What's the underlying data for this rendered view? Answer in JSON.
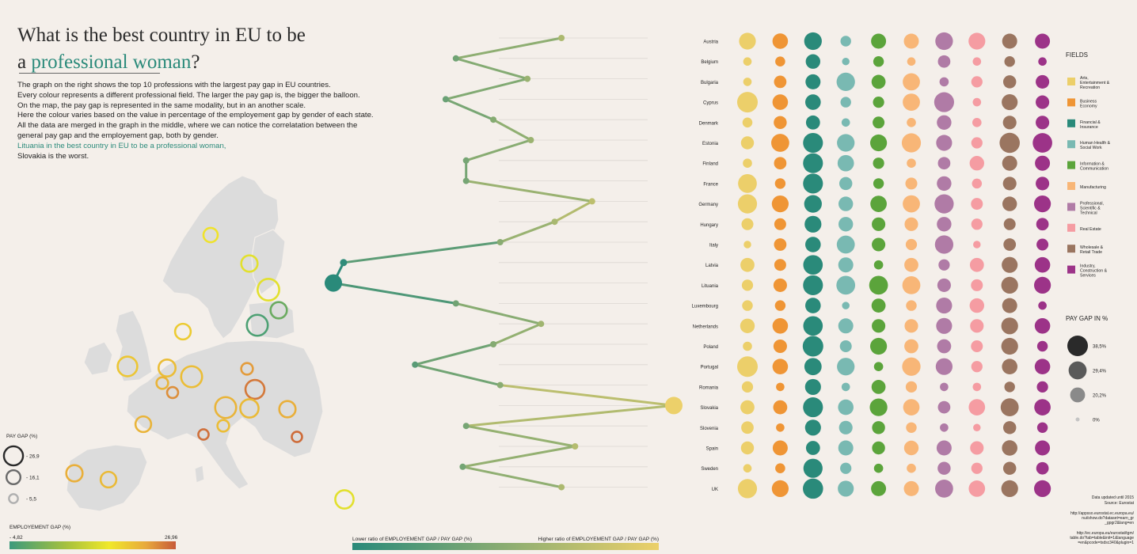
{
  "title": {
    "line1": "What is the best country in EU to be",
    "line2_prefix": "a ",
    "line2_highlight": "professional woman",
    "line2_suffix": "?"
  },
  "description": [
    "The graph on the right shows the top 10 professions with the largest pay gap in EU countries.",
    "Every colour represents a different professional field. The larger the pay gap is, the bigger the balloon.",
    "On the map, the pay gap is represented in the same modality, but in an another scale.",
    "Here the colour varies based on the value in percentage of the employement gap by gender of each state.",
    "All the data are merged in the graph in the middle, where we can notice the correlatation between the general pay gap and the employement gap, both by gender."
  ],
  "conclusion": {
    "highlight": "Lituania in the best country in EU to be a professional woman,",
    "rest": "Slovakia is the worst."
  },
  "map_legend": {
    "pay_gap_title": "PAY GAP (%)",
    "sizes": [
      {
        "label": "- 26,9",
        "value": 26.9
      },
      {
        "label": "- 16,1",
        "value": 16.1
      },
      {
        "label": "- 5,5",
        "value": 5.5
      }
    ],
    "employment_title": "EMPLOYEMENT GAP (%)",
    "emp_min": "- 4,82",
    "emp_max": "26,96"
  },
  "middle_legend": {
    "left": "Lower ratio of EMPLOYEMENT GAP / PAY GAP (%)",
    "right": "Higher ratio of EMPLOYEMENT GAP / PAY GAP (%)"
  },
  "fields_title": "FIELDS",
  "paygap_title": "PAY GAP IN %",
  "paygap_sizes": [
    {
      "label": "38,5%",
      "value": 38.5,
      "color": "#2a2a2a"
    },
    {
      "label": "29,4%",
      "value": 29.4,
      "color": "#5a5a5a"
    },
    {
      "label": "20,2%",
      "value": 20.2,
      "color": "#8a8a8a"
    },
    {
      "label": "0%",
      "value": 0,
      "color": "#c4c4c4"
    }
  ],
  "footer": {
    "updated": "Data updated until 2015",
    "source": "Source: Eurostat",
    "url1a": "http://appsso.eurostat.ec.europa.eu/",
    "url1b": "nui/show.do?dataset=earn_gr",
    "url1c": "_gpgr2&lang=en",
    "url2a": "http://ec.europa.eu/eurostat/tgm/",
    "url2b": "table.do?tab=table&init=1&language",
    "url2c": "=en&pcode=tsdsc340&plugin=1"
  },
  "chart_data": [
    {
      "type": "scatter",
      "title": "Pay gap by professional field",
      "fields": [
        {
          "name": "Arts, Entertainment & Recreation",
          "lines": [
            "Arts,",
            "Entertainment &",
            "Recreation"
          ],
          "color": "#eccf6a"
        },
        {
          "name": "Business Economy",
          "lines": [
            "Business",
            "Economy"
          ],
          "color": "#ef9535"
        },
        {
          "name": "Financial & Insurance",
          "lines": [
            "Financial &",
            "Insurance"
          ],
          "color": "#2a8a7a"
        },
        {
          "name": "Human Health & Social Work",
          "lines": [
            "Human Health &",
            "Social Work"
          ],
          "color": "#79b9b2"
        },
        {
          "name": "Information & Communication",
          "lines": [
            "Information &",
            "Communication"
          ],
          "color": "#5ba43b"
        },
        {
          "name": "Manufacturing",
          "lines": [
            "Manufacturing"
          ],
          "color": "#f8b677"
        },
        {
          "name": "Professional, Scientific & Technical",
          "lines": [
            "Professional,",
            "Scientific &",
            "Technical"
          ],
          "color": "#b07ba6"
        },
        {
          "name": "Real Estate",
          "lines": [
            "Real Estate"
          ],
          "color": "#f59ca2"
        },
        {
          "name": "Wholesale & Retail Trade",
          "lines": [
            "Wholesale &",
            "Retail Trade"
          ],
          "color": "#9a7560"
        },
        {
          "name": "Industry, Construction & Services",
          "lines": [
            "Industry,",
            "Construction &",
            "Services"
          ],
          "color": "#9c3388"
        }
      ],
      "rows": [
        {
          "country": "Austria",
          "values": [
            20,
            17,
            22,
            8,
            16,
            16,
            22,
            20,
            16,
            16
          ]
        },
        {
          "country": "Belgium",
          "values": [
            5,
            7,
            15,
            4,
            8,
            5,
            11,
            5,
            8,
            5
          ]
        },
        {
          "country": "Bulgaria",
          "values": [
            5,
            11,
            16,
            24,
            14,
            21,
            6,
            9,
            12,
            13
          ]
        },
        {
          "country": "Cyprus",
          "values": [
            30,
            17,
            17,
            8,
            9,
            21,
            28,
            5,
            18,
            13
          ]
        },
        {
          "country": "Denmark",
          "values": [
            7,
            12,
            14,
            5,
            10,
            6,
            15,
            6,
            13,
            13
          ]
        },
        {
          "country": "Estonia",
          "values": [
            12,
            23,
            28,
            22,
            20,
            26,
            18,
            9,
            29,
            27
          ]
        },
        {
          "country": "Finland",
          "values": [
            6,
            11,
            28,
            19,
            9,
            6,
            11,
            15,
            16,
            16
          ]
        },
        {
          "country": "France",
          "values": [
            25,
            8,
            28,
            12,
            8,
            10,
            15,
            7,
            13,
            13
          ]
        },
        {
          "country": "Germany",
          "values": [
            26,
            20,
            22,
            15,
            19,
            21,
            26,
            10,
            15,
            20
          ]
        },
        {
          "country": "Hungary",
          "values": [
            10,
            10,
            20,
            15,
            13,
            13,
            15,
            9,
            10,
            11
          ]
        },
        {
          "country": "Italy",
          "values": [
            4,
            11,
            17,
            23,
            13,
            9,
            24,
            4,
            11,
            10
          ]
        },
        {
          "country": "Latvia",
          "values": [
            14,
            10,
            27,
            16,
            6,
            14,
            9,
            14,
            18,
            17
          ]
        },
        {
          "country": "Lituania",
          "values": [
            9,
            13,
            28,
            25,
            25,
            23,
            13,
            10,
            20,
            20
          ]
        },
        {
          "country": "Luxembourg",
          "values": [
            8,
            8,
            17,
            4,
            14,
            8,
            18,
            15,
            16,
            5
          ]
        },
        {
          "country": "Netherlands",
          "values": [
            15,
            17,
            27,
            16,
            13,
            13,
            18,
            13,
            20,
            17
          ]
        },
        {
          "country": "Poland",
          "values": [
            6,
            13,
            30,
            10,
            20,
            14,
            14,
            10,
            20,
            8
          ]
        },
        {
          "country": "Portugal",
          "values": [
            30,
            17,
            21,
            22,
            6,
            24,
            20,
            9,
            17,
            17
          ]
        },
        {
          "country": "Romania",
          "values": [
            9,
            5,
            18,
            5,
            14,
            9,
            5,
            5,
            8,
            9
          ]
        },
        {
          "country": "Slovakia",
          "values": [
            14,
            14,
            28,
            17,
            22,
            19,
            11,
            19,
            23,
            19
          ]
        },
        {
          "country": "Slovenia",
          "values": [
            11,
            5,
            18,
            13,
            12,
            8,
            5,
            4,
            12,
            8
          ]
        },
        {
          "country": "Spain",
          "values": [
            12,
            16,
            14,
            16,
            12,
            15,
            16,
            13,
            17,
            16
          ]
        },
        {
          "country": "Sweden",
          "values": [
            5,
            7,
            26,
            9,
            6,
            6,
            12,
            9,
            12,
            11
          ]
        },
        {
          "country": "UK",
          "values": [
            26,
            20,
            29,
            18,
            16,
            16,
            23,
            19,
            20,
            20
          ]
        }
      ]
    },
    {
      "type": "line",
      "title": "Employement gap / Pay gap ratio by country",
      "x_min": "Lower ratio of EMPLOYEMENT GAP / PAY GAP (%)",
      "x_max": "Higher ratio of EMPLOYEMENT GAP / PAY GAP (%)",
      "points": [
        {
          "country": "Austria",
          "ratio": 0.67
        },
        {
          "country": "Belgium",
          "ratio": 0.36
        },
        {
          "country": "Bulgaria",
          "ratio": 0.57
        },
        {
          "country": "Cyprus",
          "ratio": 0.33
        },
        {
          "country": "Denmark",
          "ratio": 0.47
        },
        {
          "country": "Estonia",
          "ratio": 0.58
        },
        {
          "country": "Finland",
          "ratio": 0.39
        },
        {
          "country": "France",
          "ratio": 0.39
        },
        {
          "country": "Germany",
          "ratio": 0.76
        },
        {
          "country": "Hungary",
          "ratio": 0.65
        },
        {
          "country": "Italy",
          "ratio": 0.49
        },
        {
          "country": "Latvia",
          "ratio": 0.03
        },
        {
          "country": "Lituania",
          "ratio": 0.0
        },
        {
          "country": "Luxembourg",
          "ratio": 0.36
        },
        {
          "country": "Netherlands",
          "ratio": 0.61
        },
        {
          "country": "Poland",
          "ratio": 0.47
        },
        {
          "country": "Portugal",
          "ratio": 0.24
        },
        {
          "country": "Romania",
          "ratio": 0.49
        },
        {
          "country": "Slovakia",
          "ratio": 1.0
        },
        {
          "country": "Slovenia",
          "ratio": 0.39
        },
        {
          "country": "Spain",
          "ratio": 0.71
        },
        {
          "country": "Sweden",
          "ratio": 0.38
        },
        {
          "country": "UK",
          "ratio": 0.67
        }
      ]
    },
    {
      "type": "map",
      "title": "Pay gap and employement gap on EU map",
      "markers": [
        {
          "country": "Norway",
          "pay_gap": 12,
          "emp_gap": 0.62
        },
        {
          "country": "Finland",
          "pay_gap": 15,
          "emp_gap": 0.55
        },
        {
          "country": "Estonia",
          "pay_gap": 23,
          "emp_gap": 0.55
        },
        {
          "country": "Latvia",
          "pay_gap": 15,
          "emp_gap": 0.15
        },
        {
          "country": "Lithuania",
          "pay_gap": 22,
          "emp_gap": 0.05
        },
        {
          "country": "Denmark",
          "pay_gap": 14,
          "emp_gap": 0.7
        },
        {
          "country": "UK",
          "pay_gap": 20,
          "emp_gap": 0.72
        },
        {
          "country": "Netherlands",
          "pay_gap": 16,
          "emp_gap": 0.75
        },
        {
          "country": "Belgium",
          "pay_gap": 8,
          "emp_gap": 0.78
        },
        {
          "country": "Luxembourg",
          "pay_gap": 7,
          "emp_gap": 0.88
        },
        {
          "country": "Germany",
          "pay_gap": 22,
          "emp_gap": 0.75
        },
        {
          "country": "Poland",
          "pay_gap": 8,
          "emp_gap": 0.85
        },
        {
          "country": "Slovakia",
          "pay_gap": 19,
          "emp_gap": 0.93
        },
        {
          "country": "Czech Republic",
          "pay_gap": 22,
          "emp_gap": 0.78
        },
        {
          "country": "Austria",
          "pay_gap": 18,
          "emp_gap": 0.76
        },
        {
          "country": "Hungary",
          "pay_gap": 15,
          "emp_gap": 0.8
        },
        {
          "country": "Romania",
          "pay_gap": 6,
          "emp_gap": 0.95
        },
        {
          "country": "France",
          "pay_gap": 14,
          "emp_gap": 0.78
        },
        {
          "country": "Slovenia",
          "pay_gap": 8,
          "emp_gap": 0.75
        },
        {
          "country": "Italy",
          "pay_gap": 6,
          "emp_gap": 0.96
        },
        {
          "country": "Bulgaria",
          "pay_gap": 14,
          "emp_gap": 0.76
        },
        {
          "country": "Spain",
          "pay_gap": 15,
          "emp_gap": 0.8
        },
        {
          "country": "Portugal",
          "pay_gap": 18,
          "emp_gap": 0.55
        },
        {
          "country": "Cyprus",
          "pay_gap": 13,
          "emp_gap": 0.58
        }
      ]
    }
  ]
}
